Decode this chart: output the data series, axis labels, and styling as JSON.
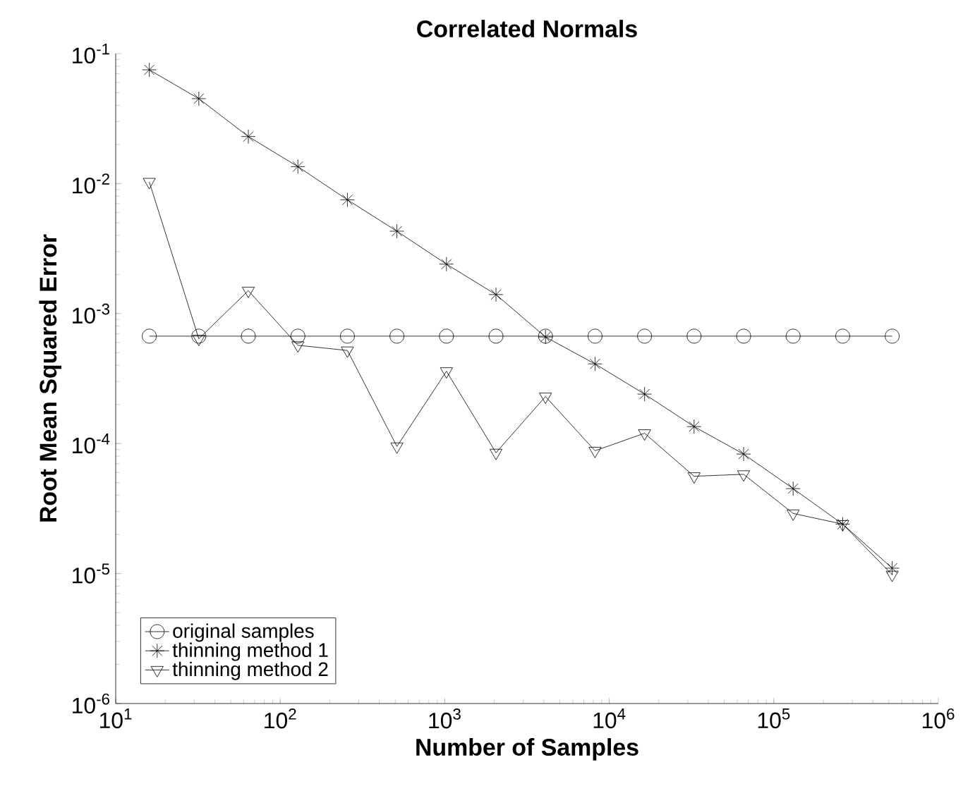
{
  "chart_data": {
    "type": "line",
    "title": "Correlated Normals",
    "xlabel": "Number of Samples",
    "ylabel": "Root Mean Squared Error",
    "x": [
      16,
      32,
      64,
      128,
      256,
      512,
      1024,
      2048,
      4096,
      8192,
      16384,
      32768,
      65536,
      131072,
      262144,
      524288
    ],
    "series": [
      {
        "name": "original samples",
        "color": "#000000",
        "marker": "circle",
        "values": [
          0.00067,
          0.00067,
          0.00067,
          0.00067,
          0.00067,
          0.00067,
          0.00067,
          0.00067,
          0.00067,
          0.00067,
          0.00067,
          0.00067,
          0.00067,
          0.00067,
          0.00067,
          0.00067
        ]
      },
      {
        "name": "thinning method 1",
        "color": "#000000",
        "marker": "cross",
        "values": [
          0.075,
          0.045,
          0.023,
          0.0135,
          0.0075,
          0.0043,
          0.0024,
          0.0014,
          0.00066,
          0.00041,
          0.00024,
          0.000135,
          8.3e-05,
          4.5e-05,
          2.4e-05,
          1.1e-05
        ]
      },
      {
        "name": "thinning method 2",
        "color": "#000000",
        "marker": "triangle",
        "values": [
          0.0103,
          0.00064,
          0.0015,
          0.00057,
          0.00052,
          9.5e-05,
          0.00036,
          8.5e-05,
          0.00023,
          8.8e-05,
          0.00012,
          5.6e-05,
          5.8e-05,
          2.9e-05,
          2.4e-05,
          9.8e-06
        ]
      }
    ],
    "log": "xy",
    "xlim": [
      10,
      1000000
    ],
    "ylim": [
      1e-06,
      0.1
    ],
    "xticks": [
      {
        "value": 10,
        "label": "10$^{1}$"
      },
      {
        "value": 100,
        "label": "10$^{2}$"
      },
      {
        "value": 1000,
        "label": "10$^{3}$"
      },
      {
        "value": 10000,
        "label": "10$^{4}$"
      },
      {
        "value": 100000,
        "label": "10$^{5}$"
      },
      {
        "value": 1000000,
        "label": "10$^{6}$"
      }
    ],
    "yticks": [
      {
        "value": 1e-06,
        "label": "10$^{-6}$"
      },
      {
        "value": 1e-05,
        "label": "10$^{-5}$"
      },
      {
        "value": 0.0001,
        "label": "10$^{-4}$"
      },
      {
        "value": 0.001,
        "label": "10$^{-3}$"
      },
      {
        "value": 0.01,
        "label": "10$^{-2}$"
      },
      {
        "value": 0.1,
        "label": "10$^{-1}$"
      }
    ],
    "grid": false,
    "legend": "bottom left",
    "line_style": "solid"
  }
}
